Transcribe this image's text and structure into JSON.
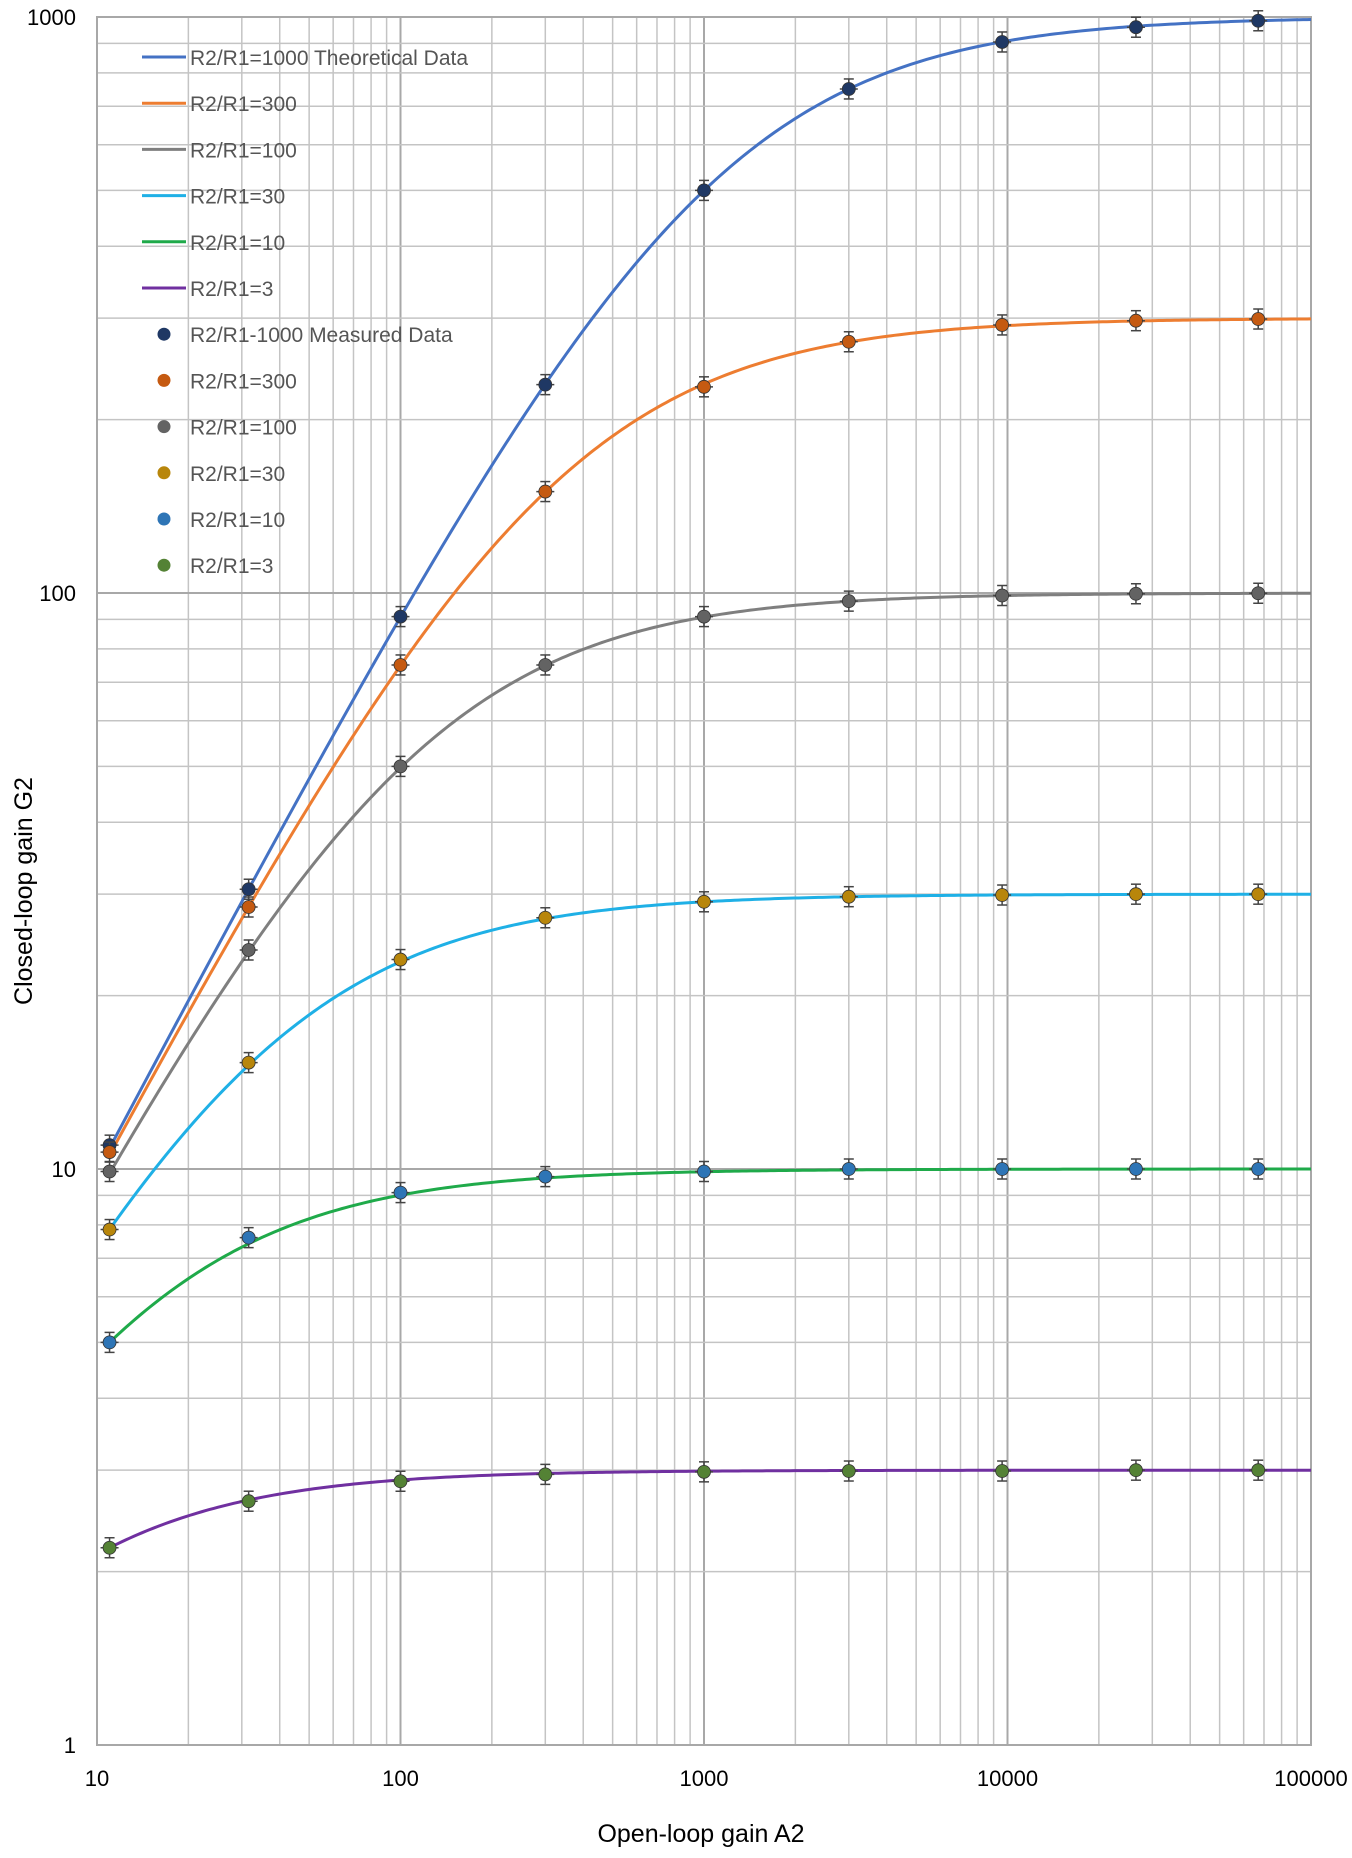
{
  "chart_data": {
    "type": "line",
    "xlabel": "Open-loop gain A2",
    "ylabel": "Closed-loop gain G2",
    "xscale": "log",
    "yscale": "log",
    "xlim": [
      10,
      100000
    ],
    "ylim": [
      1,
      1000
    ],
    "grid": true,
    "legend_position": "top-left",
    "x_ticks": [
      "10",
      "100",
      "1000",
      "10000",
      "100000"
    ],
    "y_ticks": [
      "1",
      "10",
      "100",
      "1000"
    ],
    "theoretical": [
      {
        "name": "R2/R1=1000  Theoretical Data",
        "ratio": 1000,
        "color": "#4472C4"
      },
      {
        "name": "R2/R1=300",
        "ratio": 300,
        "color": "#ED7D31"
      },
      {
        "name": "R2/R1=100",
        "ratio": 100,
        "color": "#7F7F7F"
      },
      {
        "name": "R2/R1=30",
        "ratio": 30,
        "color": "#1FB0E6"
      },
      {
        "name": "R2/R1=10",
        "ratio": 10,
        "color": "#1FAA4A"
      },
      {
        "name": "R2/R1=3",
        "ratio": 3,
        "color": "#7030A0"
      }
    ],
    "measured_x": [
      11,
      31.6,
      100,
      300,
      1000,
      3000,
      9600,
      26500,
      67000
    ],
    "measured": [
      {
        "name": "R2/R1-1000  Measured Data",
        "color": "#1F3864",
        "values": [
          11.0,
          30.6,
          91.0,
          230,
          500,
          750,
          905,
          960,
          985
        ]
      },
      {
        "name": "R2/R1=300",
        "color": "#C55A11",
        "values": [
          10.7,
          28.5,
          75,
          150,
          228,
          273,
          292,
          297,
          299
        ]
      },
      {
        "name": "R2/R1=100",
        "color": "#636363",
        "values": [
          9.9,
          24.0,
          50.0,
          75.0,
          91.0,
          96.8,
          99.0,
          99.7,
          99.9
        ]
      },
      {
        "name": "R2/R1=30",
        "color": "#B8860B",
        "values": [
          7.85,
          15.3,
          23.1,
          27.3,
          29.1,
          29.7,
          29.9,
          30.0,
          30.0
        ]
      },
      {
        "name": "R2/R1=10",
        "color": "#2E75B6",
        "values": [
          5.0,
          7.6,
          9.1,
          9.7,
          9.9,
          10.0,
          10.0,
          10.0,
          10.0
        ]
      },
      {
        "name": "R2/R1=3",
        "color": "#548235",
        "values": [
          2.2,
          2.65,
          2.87,
          2.95,
          2.98,
          2.99,
          2.99,
          3.0,
          3.0
        ]
      }
    ]
  }
}
